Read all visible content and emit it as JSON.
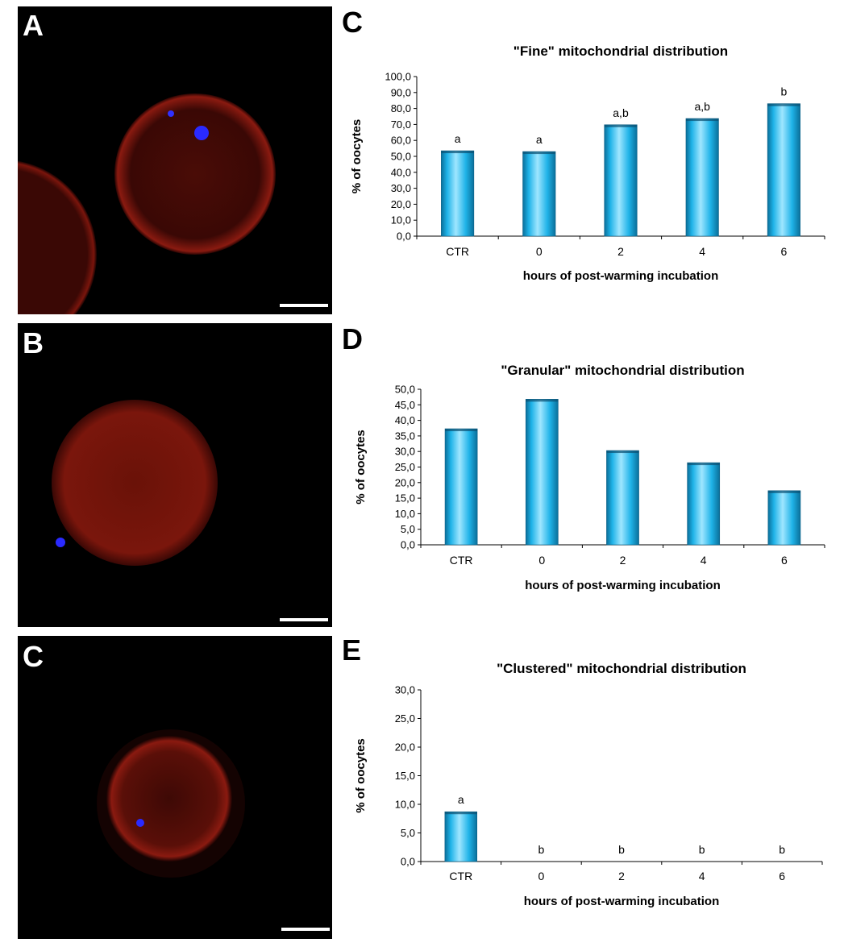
{
  "figure": {
    "micrograph_letters": [
      "A",
      "B",
      "C"
    ],
    "chart_letters": [
      "C",
      "D",
      "E"
    ]
  },
  "colors": {
    "bar_fill": "#1fb3e8",
    "bar_highlight": "#9fe6ff",
    "bar_shadow": "#0a6f9a",
    "micro_background": "#000000",
    "cytoplasm": "#8a1a10",
    "chromatin": "#2a2aff",
    "scale_bar": "#ffffff"
  },
  "chart_data": [
    {
      "type": "bar",
      "title": "\"Fine\" mitochondrial distribution",
      "xlabel": "hours  of post-warming incubation",
      "ylabel": "% of  oocytes",
      "categories": [
        "CTR",
        "0",
        "2",
        "4",
        "6"
      ],
      "values": [
        53.5,
        53.0,
        69.8,
        73.7,
        83.0
      ],
      "annotations": [
        "a",
        "a",
        "a,b",
        "a,b",
        "b"
      ],
      "ylim": [
        0,
        100
      ],
      "yticks": [
        "0,0",
        "10,0",
        "20,0",
        "30,0",
        "40,0",
        "50,0",
        "60,0",
        "70,0",
        "80,0",
        "90,0",
        "100,0"
      ],
      "grid": false,
      "legend": "none"
    },
    {
      "type": "bar",
      "title": "\"Granular\" mitochondrial distribution",
      "xlabel": "hours  of post-warming incubation",
      "ylabel": "% of  oocytes",
      "categories": [
        "CTR",
        "0",
        "2",
        "4",
        "6"
      ],
      "values": [
        37.3,
        46.8,
        30.3,
        26.4,
        17.4
      ],
      "annotations": [
        "",
        "",
        "",
        "",
        ""
      ],
      "ylim": [
        0,
        50
      ],
      "yticks": [
        "0,0",
        "5,0",
        "10,0",
        "15,0",
        "20,0",
        "25,0",
        "30,0",
        "35,0",
        "40,0",
        "45,0",
        "50,0"
      ],
      "grid": false,
      "legend": "none"
    },
    {
      "type": "bar",
      "title": "\"Clustered\" mitochondrial distribution",
      "xlabel": "hours  of post-warming incubation",
      "ylabel": "% of  oocytes",
      "categories": [
        "CTR",
        "0",
        "2",
        "4",
        "6"
      ],
      "values": [
        8.7,
        0,
        0,
        0,
        0
      ],
      "annotations": [
        "a",
        "b",
        "b",
        "b",
        "b"
      ],
      "ylim": [
        0,
        30
      ],
      "yticks": [
        "0,0",
        "5,0",
        "10,0",
        "15,0",
        "20,0",
        "25,0",
        "30,0"
      ],
      "grid": false,
      "legend": "none"
    }
  ]
}
